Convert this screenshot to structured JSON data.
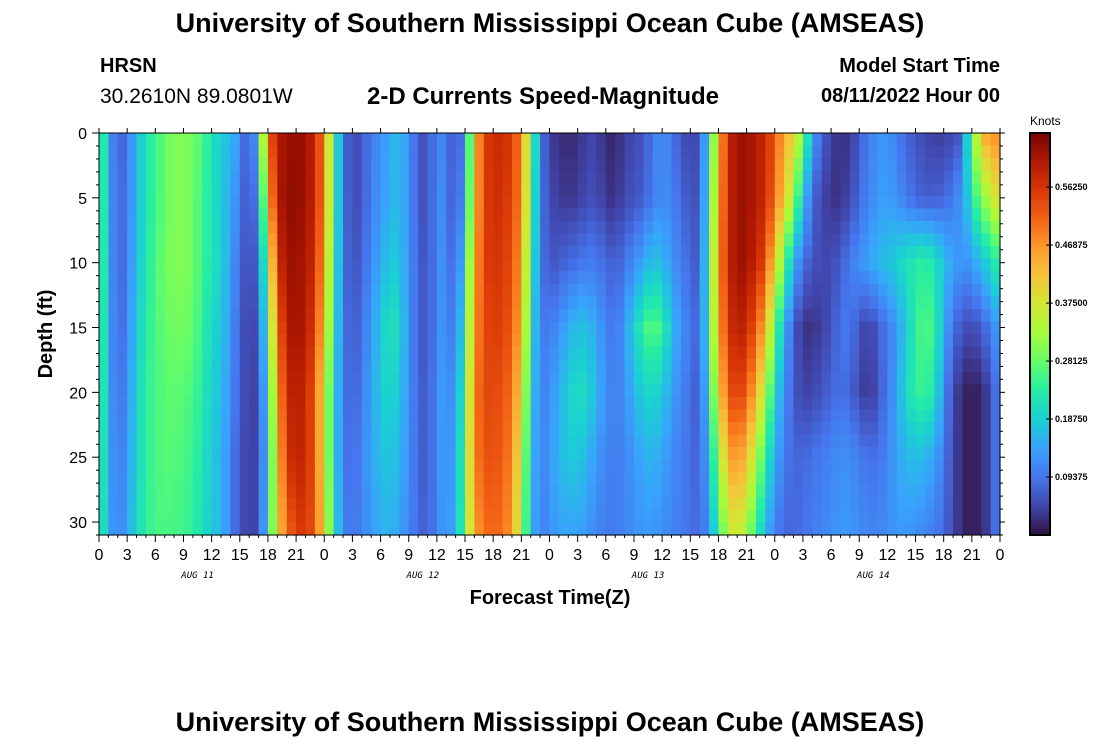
{
  "header": {
    "main_title": "University of Southern Mississippi Ocean Cube (AMSEAS)",
    "station": "HRSN",
    "coords": "30.2610N  89.0801W",
    "chart_title": "2-D Currents Speed-Magnitude",
    "start_label": "Model Start Time",
    "start_value": "08/11/2022 Hour 00",
    "bottom_title": "University of Southern Mississippi Ocean Cube (AMSEAS)"
  },
  "colors": {
    "colormap": [
      "#30123b",
      "#4145ab",
      "#4675ed",
      "#39a2fc",
      "#1bcfd4",
      "#24eca6",
      "#61fc6c",
      "#a4fc3b",
      "#d1e834",
      "#f3c63a",
      "#fe9b2d",
      "#f36315",
      "#d93806",
      "#b11901",
      "#7a0402"
    ]
  },
  "chart_data": {
    "type": "heatmap",
    "title": "2-D Currents Speed-Magnitude",
    "xlabel": "Forecast Time(Z)",
    "ylabel": "Depth (ft)",
    "x_range_hours": [
      0,
      96
    ],
    "xticks": [
      "0",
      "3",
      "6",
      "9",
      "12",
      "15",
      "18",
      "21",
      "0",
      "3",
      "6",
      "9",
      "12",
      "15",
      "18",
      "21",
      "0",
      "3",
      "6",
      "9",
      "12",
      "15",
      "18",
      "21",
      "0",
      "3",
      "6",
      "9",
      "12",
      "15",
      "18",
      "21",
      "0"
    ],
    "day_labels": [
      "AUG 11",
      "AUG 12",
      "AUG 13",
      "AUG 14"
    ],
    "ylim": [
      0,
      31
    ],
    "yticks": [
      "0",
      "5",
      "10",
      "15",
      "20",
      "25",
      "30"
    ],
    "colorbar": {
      "label": "Knots",
      "range": [
        0,
        0.65
      ],
      "ticks": [
        "0.09375",
        "0.18750",
        "0.28125",
        "0.37500",
        "0.46875",
        "0.56250"
      ]
    },
    "depths": [
      0,
      5,
      10,
      15,
      20,
      25,
      31
    ],
    "column_hours": [
      0,
      1,
      2,
      3,
      4,
      5,
      6,
      7,
      8,
      9,
      10,
      11,
      12,
      13,
      14,
      15,
      16,
      17,
      18,
      19,
      20,
      21,
      22,
      23,
      24,
      25,
      26,
      27,
      28,
      29,
      30,
      31,
      32,
      33,
      34,
      35,
      36,
      37,
      38,
      39,
      40,
      41,
      42,
      43,
      44,
      45,
      46,
      47,
      48,
      49,
      50,
      51,
      52,
      53,
      54,
      55,
      56,
      57,
      58,
      59,
      60,
      61,
      62,
      63,
      64,
      65,
      66,
      67,
      68,
      69,
      70,
      71,
      72,
      73,
      74,
      75,
      76,
      77,
      78,
      79,
      80,
      81,
      82,
      83,
      84,
      85,
      86,
      87,
      88,
      89,
      90,
      91,
      92,
      93,
      94,
      95,
      96
    ],
    "speed_knots_by_depth": [
      [
        0.3,
        0.15,
        0.06,
        0.1,
        0.16,
        0.22,
        0.25,
        0.28,
        0.3,
        0.3,
        0.29,
        0.26,
        0.22,
        0.18,
        0.17,
        0.12,
        0.05,
        0.18,
        0.5,
        0.6,
        0.62,
        0.63,
        0.62,
        0.58,
        0.48,
        0.26,
        0.1,
        0.04,
        0.07,
        0.1,
        0.12,
        0.15,
        0.17,
        0.12,
        0.07,
        0.05,
        0.12,
        0.1,
        0.05,
        0.12,
        0.42,
        0.55,
        0.57,
        0.58,
        0.55,
        0.48,
        0.3,
        0.1,
        0.04,
        0.03,
        0.02,
        0.03,
        0.04,
        0.05,
        0.02,
        0.02,
        0.04,
        0.05,
        0.06,
        0.1,
        0.12,
        0.1,
        0.06,
        0.04,
        0.06,
        0.2,
        0.42,
        0.58,
        0.62,
        0.62,
        0.6,
        0.58,
        0.52,
        0.45,
        0.4,
        0.3,
        0.14,
        0.08,
        0.04,
        0.03,
        0.03,
        0.07,
        0.1,
        0.12,
        0.13,
        0.1,
        0.08,
        0.06,
        0.05,
        0.04,
        0.04,
        0.05,
        0.07,
        0.3,
        0.4,
        0.5,
        0.45
      ],
      [
        0.3,
        0.15,
        0.07,
        0.1,
        0.16,
        0.22,
        0.25,
        0.28,
        0.3,
        0.3,
        0.29,
        0.25,
        0.22,
        0.18,
        0.15,
        0.1,
        0.05,
        0.12,
        0.42,
        0.6,
        0.63,
        0.63,
        0.62,
        0.58,
        0.48,
        0.26,
        0.1,
        0.04,
        0.07,
        0.1,
        0.13,
        0.15,
        0.17,
        0.12,
        0.07,
        0.05,
        0.12,
        0.11,
        0.05,
        0.15,
        0.42,
        0.55,
        0.57,
        0.57,
        0.54,
        0.48,
        0.28,
        0.1,
        0.05,
        0.04,
        0.03,
        0.04,
        0.05,
        0.06,
        0.03,
        0.03,
        0.05,
        0.06,
        0.07,
        0.1,
        0.12,
        0.11,
        0.08,
        0.06,
        0.06,
        0.22,
        0.44,
        0.58,
        0.62,
        0.62,
        0.6,
        0.58,
        0.5,
        0.42,
        0.32,
        0.18,
        0.08,
        0.05,
        0.03,
        0.03,
        0.05,
        0.08,
        0.11,
        0.13,
        0.14,
        0.12,
        0.1,
        0.08,
        0.07,
        0.07,
        0.08,
        0.1,
        0.13,
        0.22,
        0.3,
        0.35,
        0.4
      ],
      [
        0.3,
        0.15,
        0.07,
        0.1,
        0.17,
        0.22,
        0.26,
        0.29,
        0.3,
        0.3,
        0.29,
        0.25,
        0.22,
        0.19,
        0.14,
        0.08,
        0.05,
        0.08,
        0.32,
        0.56,
        0.62,
        0.62,
        0.61,
        0.57,
        0.45,
        0.24,
        0.1,
        0.05,
        0.08,
        0.11,
        0.15,
        0.18,
        0.18,
        0.12,
        0.08,
        0.05,
        0.12,
        0.12,
        0.06,
        0.2,
        0.44,
        0.55,
        0.56,
        0.56,
        0.53,
        0.46,
        0.25,
        0.1,
        0.06,
        0.07,
        0.08,
        0.09,
        0.1,
        0.1,
        0.08,
        0.07,
        0.09,
        0.12,
        0.14,
        0.18,
        0.16,
        0.13,
        0.1,
        0.08,
        0.06,
        0.25,
        0.46,
        0.58,
        0.62,
        0.62,
        0.58,
        0.54,
        0.4,
        0.28,
        0.15,
        0.09,
        0.06,
        0.05,
        0.05,
        0.07,
        0.1,
        0.12,
        0.14,
        0.16,
        0.17,
        0.19,
        0.21,
        0.23,
        0.24,
        0.22,
        0.17,
        0.14,
        0.12,
        0.13,
        0.17,
        0.2,
        0.25
      ],
      [
        0.29,
        0.15,
        0.07,
        0.11,
        0.18,
        0.23,
        0.26,
        0.28,
        0.29,
        0.29,
        0.28,
        0.24,
        0.2,
        0.18,
        0.13,
        0.07,
        0.04,
        0.06,
        0.25,
        0.5,
        0.6,
        0.62,
        0.6,
        0.55,
        0.42,
        0.22,
        0.1,
        0.06,
        0.09,
        0.13,
        0.18,
        0.22,
        0.2,
        0.12,
        0.08,
        0.05,
        0.12,
        0.13,
        0.08,
        0.24,
        0.46,
        0.54,
        0.55,
        0.55,
        0.52,
        0.44,
        0.22,
        0.1,
        0.1,
        0.12,
        0.15,
        0.17,
        0.17,
        0.14,
        0.11,
        0.09,
        0.13,
        0.19,
        0.24,
        0.28,
        0.24,
        0.17,
        0.12,
        0.1,
        0.07,
        0.24,
        0.44,
        0.56,
        0.6,
        0.58,
        0.52,
        0.44,
        0.28,
        0.16,
        0.07,
        0.03,
        0.03,
        0.04,
        0.06,
        0.09,
        0.1,
        0.06,
        0.04,
        0.07,
        0.1,
        0.13,
        0.18,
        0.24,
        0.27,
        0.25,
        0.15,
        0.09,
        0.06,
        0.05,
        0.07,
        0.1,
        0.15
      ],
      [
        0.28,
        0.15,
        0.08,
        0.12,
        0.19,
        0.24,
        0.26,
        0.27,
        0.28,
        0.27,
        0.26,
        0.23,
        0.19,
        0.17,
        0.12,
        0.07,
        0.04,
        0.05,
        0.2,
        0.45,
        0.58,
        0.6,
        0.58,
        0.52,
        0.38,
        0.2,
        0.1,
        0.07,
        0.1,
        0.14,
        0.18,
        0.2,
        0.18,
        0.12,
        0.08,
        0.06,
        0.12,
        0.14,
        0.1,
        0.28,
        0.48,
        0.54,
        0.54,
        0.53,
        0.5,
        0.4,
        0.2,
        0.1,
        0.12,
        0.15,
        0.19,
        0.21,
        0.2,
        0.16,
        0.12,
        0.1,
        0.12,
        0.16,
        0.19,
        0.2,
        0.18,
        0.14,
        0.11,
        0.09,
        0.06,
        0.2,
        0.4,
        0.52,
        0.56,
        0.52,
        0.44,
        0.34,
        0.2,
        0.12,
        0.07,
        0.04,
        0.05,
        0.06,
        0.08,
        0.09,
        0.08,
        0.05,
        0.03,
        0.06,
        0.1,
        0.14,
        0.2,
        0.24,
        0.25,
        0.22,
        0.12,
        0.05,
        0.02,
        0.01,
        0.02,
        0.05,
        0.12
      ],
      [
        0.27,
        0.15,
        0.09,
        0.13,
        0.19,
        0.24,
        0.26,
        0.27,
        0.27,
        0.26,
        0.25,
        0.22,
        0.18,
        0.16,
        0.11,
        0.06,
        0.04,
        0.05,
        0.18,
        0.42,
        0.56,
        0.59,
        0.58,
        0.52,
        0.38,
        0.2,
        0.1,
        0.08,
        0.11,
        0.14,
        0.17,
        0.18,
        0.16,
        0.12,
        0.08,
        0.06,
        0.12,
        0.14,
        0.12,
        0.3,
        0.48,
        0.53,
        0.53,
        0.52,
        0.48,
        0.36,
        0.18,
        0.1,
        0.13,
        0.16,
        0.18,
        0.18,
        0.16,
        0.13,
        0.11,
        0.1,
        0.11,
        0.13,
        0.15,
        0.16,
        0.14,
        0.12,
        0.1,
        0.09,
        0.07,
        0.16,
        0.32,
        0.44,
        0.48,
        0.42,
        0.34,
        0.24,
        0.15,
        0.1,
        0.08,
        0.08,
        0.09,
        0.1,
        0.11,
        0.12,
        0.12,
        0.1,
        0.09,
        0.09,
        0.11,
        0.14,
        0.16,
        0.17,
        0.16,
        0.14,
        0.1,
        0.05,
        0.02,
        0.01,
        0.02,
        0.05,
        0.12
      ],
      [
        0.26,
        0.15,
        0.1,
        0.14,
        0.2,
        0.24,
        0.26,
        0.26,
        0.26,
        0.25,
        0.24,
        0.21,
        0.18,
        0.16,
        0.11,
        0.06,
        0.04,
        0.05,
        0.2,
        0.4,
        0.5,
        0.55,
        0.56,
        0.52,
        0.4,
        0.22,
        0.11,
        0.09,
        0.11,
        0.13,
        0.15,
        0.16,
        0.14,
        0.11,
        0.08,
        0.07,
        0.11,
        0.14,
        0.13,
        0.3,
        0.45,
        0.5,
        0.51,
        0.5,
        0.46,
        0.33,
        0.17,
        0.1,
        0.12,
        0.14,
        0.14,
        0.14,
        0.13,
        0.11,
        0.1,
        0.1,
        0.11,
        0.12,
        0.13,
        0.13,
        0.12,
        0.11,
        0.1,
        0.09,
        0.08,
        0.12,
        0.24,
        0.34,
        0.38,
        0.32,
        0.24,
        0.16,
        0.1,
        0.08,
        0.08,
        0.09,
        0.1,
        0.11,
        0.12,
        0.13,
        0.13,
        0.12,
        0.11,
        0.11,
        0.12,
        0.13,
        0.13,
        0.12,
        0.11,
        0.1,
        0.08,
        0.05,
        0.02,
        0.01,
        0.02,
        0.05,
        0.12
      ]
    ]
  }
}
